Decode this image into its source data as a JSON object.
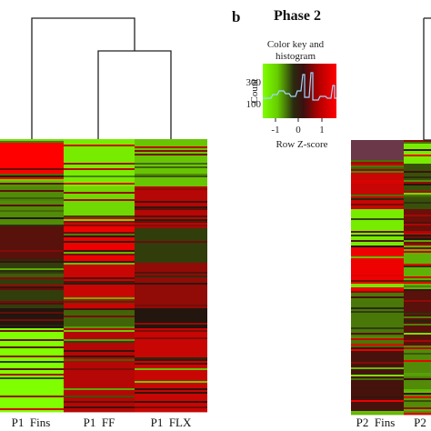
{
  "panel_b_letter": "b",
  "phase2_title": "Phase 2",
  "color_key": {
    "title_line1": "Color key and",
    "title_line2": "histogram",
    "ylabel": "Count",
    "yticks": [
      "300",
      "100"
    ],
    "xticks": [
      "-1",
      "0",
      "1"
    ],
    "xlabel": "Row Z-score",
    "colors": {
      "low": "#7fff00",
      "mid": "#1a1a1a",
      "high": "#ff0000"
    }
  },
  "chart_data": [
    {
      "type": "heatmap",
      "panel": "phase1",
      "columns": [
        "P1  Fins",
        "P1  FF",
        "P1  FLX"
      ],
      "dendrogram": "((P1 FF, P1 FLX), P1 Fins)",
      "row_zscore_pattern": "rows sorted by cluster; Fins mostly high at top and low at bottom, FF/FLX mostly high at bottom",
      "color_scale": [
        "#7fff00",
        "#1a1a1a",
        "#ff0000"
      ],
      "zscore_range": [
        -1.2,
        1.2
      ]
    },
    {
      "type": "heatmap",
      "panel": "phase2",
      "columns": [
        "P2  Fins",
        "P2"
      ],
      "color_scale": [
        "#7fff00",
        "#1a1a1a",
        "#ff0000"
      ],
      "zscore_range": [
        -1.2,
        1.2
      ]
    }
  ]
}
